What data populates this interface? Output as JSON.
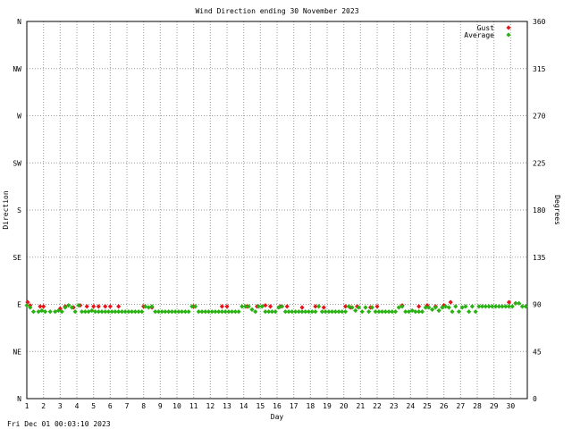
{
  "chart_data": {
    "type": "scatter",
    "title": "Wind Direction ending 30 November 2023",
    "xlabel": "Day",
    "ylabel_left": "Direction",
    "ylabel_right": "Degrees",
    "footer": "Fri Dec 01 00:03:10 2023",
    "x_ticks": [
      "1",
      "2",
      "3",
      "4",
      "5",
      "6",
      "7",
      "8",
      "9",
      "10",
      "11",
      "12",
      "13",
      "14",
      "15",
      "16",
      "17",
      "18",
      "19",
      "20",
      "21",
      "22",
      "23",
      "24",
      "25",
      "26",
      "27",
      "28",
      "29",
      "30"
    ],
    "xlim": [
      1,
      31
    ],
    "ylim": [
      0,
      360
    ],
    "y_left_ticks": [
      {
        "value": 360,
        "label": "N"
      },
      {
        "value": 315,
        "label": "NW"
      },
      {
        "value": 270,
        "label": "W"
      },
      {
        "value": 225,
        "label": "SW"
      },
      {
        "value": 180,
        "label": "S"
      },
      {
        "value": 135,
        "label": "SE"
      },
      {
        "value": 90,
        "label": "E"
      },
      {
        "value": 45,
        "label": "NE"
      },
      {
        "value": 0,
        "label": "N"
      }
    ],
    "y_right_ticks": [
      "360",
      "315",
      "270",
      "225",
      "180",
      "135",
      "90",
      "45",
      "0"
    ],
    "grid": true,
    "legend_position": "top-right",
    "series": [
      {
        "name": "Gust",
        "color": "#e8141a",
        "marker": "diamond",
        "points": [
          [
            1.05,
            92
          ],
          [
            1.2,
            89
          ],
          [
            1.8,
            88
          ],
          [
            2.0,
            88
          ],
          [
            3.0,
            86
          ],
          [
            3.3,
            88
          ],
          [
            3.8,
            87
          ],
          [
            4.2,
            89
          ],
          [
            4.6,
            88
          ],
          [
            5.0,
            88
          ],
          [
            5.3,
            88
          ],
          [
            5.7,
            88
          ],
          [
            6.0,
            88
          ],
          [
            6.5,
            88
          ],
          [
            8.0,
            88
          ],
          [
            8.5,
            87
          ],
          [
            11.0,
            88
          ],
          [
            12.7,
            88
          ],
          [
            13.0,
            88
          ],
          [
            14.2,
            88
          ],
          [
            14.8,
            88
          ],
          [
            15.3,
            89
          ],
          [
            15.6,
            88
          ],
          [
            16.2,
            88
          ],
          [
            16.6,
            88
          ],
          [
            17.5,
            87
          ],
          [
            18.3,
            88
          ],
          [
            18.8,
            87
          ],
          [
            20.1,
            88
          ],
          [
            20.4,
            87
          ],
          [
            20.8,
            88
          ],
          [
            21.6,
            87
          ],
          [
            22.0,
            88
          ],
          [
            23.5,
            89
          ],
          [
            24.5,
            88
          ],
          [
            25.0,
            89
          ],
          [
            25.5,
            88
          ],
          [
            26.0,
            89
          ],
          [
            26.4,
            92
          ],
          [
            29.9,
            92
          ],
          [
            30.3,
            91
          ]
        ]
      },
      {
        "name": "Average",
        "color": "#2ab214",
        "marker": "diamond",
        "points": [
          [
            1.0,
            89
          ],
          [
            1.2,
            87
          ],
          [
            1.4,
            83
          ],
          [
            1.7,
            83
          ],
          [
            1.9,
            84
          ],
          [
            2.1,
            83
          ],
          [
            2.4,
            83
          ],
          [
            2.7,
            83
          ],
          [
            2.9,
            84
          ],
          [
            3.1,
            83
          ],
          [
            3.3,
            87
          ],
          [
            3.5,
            89
          ],
          [
            3.7,
            87
          ],
          [
            3.9,
            83
          ],
          [
            4.1,
            89
          ],
          [
            4.3,
            83
          ],
          [
            4.5,
            83
          ],
          [
            4.7,
            83
          ],
          [
            4.9,
            84
          ],
          [
            5.1,
            83
          ],
          [
            5.3,
            83
          ],
          [
            5.5,
            83
          ],
          [
            5.7,
            83
          ],
          [
            5.9,
            83
          ],
          [
            6.1,
            83
          ],
          [
            6.3,
            83
          ],
          [
            6.5,
            83
          ],
          [
            6.7,
            83
          ],
          [
            6.9,
            83
          ],
          [
            7.1,
            83
          ],
          [
            7.3,
            83
          ],
          [
            7.5,
            83
          ],
          [
            7.7,
            83
          ],
          [
            7.9,
            83
          ],
          [
            8.1,
            88
          ],
          [
            8.3,
            87
          ],
          [
            8.5,
            88
          ],
          [
            8.7,
            83
          ],
          [
            8.9,
            83
          ],
          [
            9.1,
            83
          ],
          [
            9.3,
            83
          ],
          [
            9.5,
            83
          ],
          [
            9.7,
            83
          ],
          [
            9.9,
            83
          ],
          [
            10.1,
            83
          ],
          [
            10.3,
            83
          ],
          [
            10.5,
            83
          ],
          [
            10.7,
            83
          ],
          [
            10.9,
            88
          ],
          [
            11.1,
            88
          ],
          [
            11.3,
            83
          ],
          [
            11.5,
            83
          ],
          [
            11.7,
            83
          ],
          [
            11.9,
            83
          ],
          [
            12.1,
            83
          ],
          [
            12.3,
            83
          ],
          [
            12.5,
            83
          ],
          [
            12.7,
            83
          ],
          [
            12.9,
            83
          ],
          [
            13.1,
            83
          ],
          [
            13.3,
            83
          ],
          [
            13.5,
            83
          ],
          [
            13.7,
            83
          ],
          [
            13.9,
            88
          ],
          [
            14.1,
            88
          ],
          [
            14.3,
            88
          ],
          [
            14.5,
            85
          ],
          [
            14.7,
            83
          ],
          [
            14.9,
            88
          ],
          [
            15.1,
            88
          ],
          [
            15.3,
            83
          ],
          [
            15.5,
            83
          ],
          [
            15.7,
            83
          ],
          [
            15.9,
            83
          ],
          [
            16.1,
            87
          ],
          [
            16.3,
            88
          ],
          [
            16.5,
            83
          ],
          [
            16.7,
            83
          ],
          [
            16.9,
            83
          ],
          [
            17.1,
            83
          ],
          [
            17.3,
            83
          ],
          [
            17.5,
            83
          ],
          [
            17.7,
            83
          ],
          [
            17.9,
            83
          ],
          [
            18.1,
            83
          ],
          [
            18.3,
            83
          ],
          [
            18.5,
            88
          ],
          [
            18.7,
            83
          ],
          [
            18.9,
            83
          ],
          [
            19.1,
            83
          ],
          [
            19.3,
            83
          ],
          [
            19.5,
            83
          ],
          [
            19.7,
            83
          ],
          [
            19.9,
            83
          ],
          [
            20.1,
            83
          ],
          [
            20.3,
            88
          ],
          [
            20.5,
            87
          ],
          [
            20.7,
            84
          ],
          [
            20.9,
            87
          ],
          [
            21.1,
            83
          ],
          [
            21.3,
            87
          ],
          [
            21.5,
            83
          ],
          [
            21.7,
            87
          ],
          [
            21.9,
            83
          ],
          [
            22.1,
            83
          ],
          [
            22.3,
            83
          ],
          [
            22.5,
            83
          ],
          [
            22.7,
            83
          ],
          [
            22.9,
            83
          ],
          [
            23.1,
            83
          ],
          [
            23.3,
            87
          ],
          [
            23.5,
            88
          ],
          [
            23.7,
            83
          ],
          [
            23.9,
            83
          ],
          [
            24.1,
            84
          ],
          [
            24.3,
            83
          ],
          [
            24.5,
            83
          ],
          [
            24.7,
            83
          ],
          [
            24.9,
            87
          ],
          [
            25.1,
            87
          ],
          [
            25.3,
            85
          ],
          [
            25.5,
            87
          ],
          [
            25.7,
            84
          ],
          [
            25.9,
            87
          ],
          [
            26.1,
            88
          ],
          [
            26.3,
            87
          ],
          [
            26.5,
            83
          ],
          [
            26.7,
            88
          ],
          [
            26.9,
            83
          ],
          [
            27.1,
            87
          ],
          [
            27.3,
            88
          ],
          [
            27.5,
            83
          ],
          [
            27.7,
            88
          ],
          [
            27.9,
            83
          ],
          [
            28.1,
            88
          ],
          [
            28.3,
            88
          ],
          [
            28.5,
            88
          ],
          [
            28.7,
            88
          ],
          [
            28.9,
            88
          ],
          [
            29.1,
            88
          ],
          [
            29.3,
            88
          ],
          [
            29.5,
            88
          ],
          [
            29.7,
            88
          ],
          [
            29.9,
            88
          ],
          [
            30.1,
            88
          ],
          [
            30.3,
            91
          ],
          [
            30.5,
            91
          ],
          [
            30.7,
            88
          ],
          [
            30.9,
            88
          ]
        ]
      }
    ]
  }
}
